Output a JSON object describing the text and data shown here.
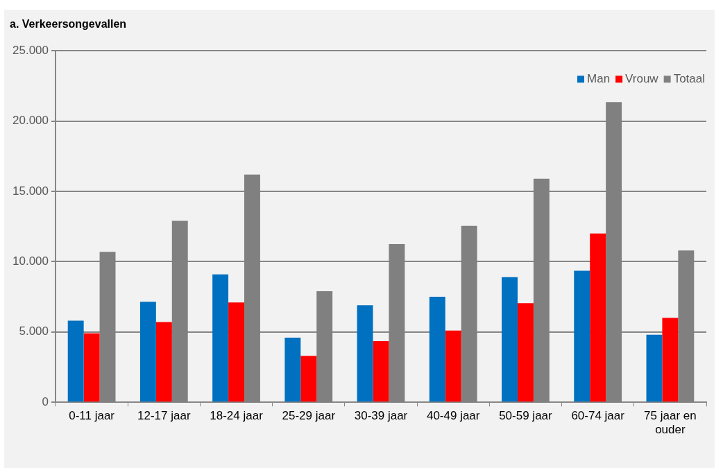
{
  "chart_data": {
    "type": "bar",
    "title": "a. Verkeersongevallen",
    "categories": [
      "0-11 jaar",
      "12-17 jaar",
      "18-24 jaar",
      "25-29 jaar",
      "30-39 jaar",
      "40-49 jaar",
      "50-59 jaar",
      "60-74 jaar",
      "75 jaar en ouder"
    ],
    "series": [
      {
        "name": "Man",
        "color": "#0070c0",
        "values": [
          5800,
          7150,
          9100,
          4600,
          6900,
          7500,
          8900,
          9350,
          4800
        ]
      },
      {
        "name": "Vrouw",
        "color": "#ff0000",
        "values": [
          4900,
          5700,
          7100,
          3300,
          4350,
          5100,
          7050,
          12000,
          6000
        ]
      },
      {
        "name": "Totaal",
        "color": "#808080",
        "values": [
          10700,
          12900,
          16200,
          7900,
          11250,
          12550,
          15900,
          21350,
          10800
        ]
      }
    ],
    "ylim": [
      0,
      25000
    ],
    "yticks": [
      {
        "value": 0,
        "label": "0"
      },
      {
        "value": 5000,
        "label": "5.000"
      },
      {
        "value": 10000,
        "label": "10.000"
      },
      {
        "value": 15000,
        "label": "15.000"
      },
      {
        "value": 20000,
        "label": "20.000"
      },
      {
        "value": 25000,
        "label": "25.000"
      }
    ],
    "grid": "y",
    "legend": "top right"
  }
}
